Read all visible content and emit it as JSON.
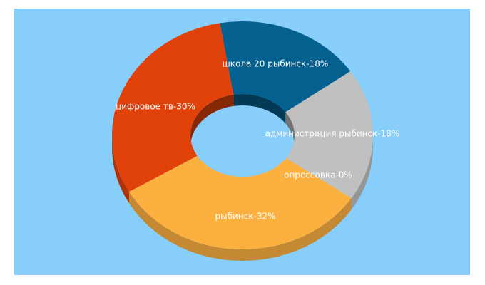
{
  "chart_data": {
    "type": "pie",
    "donut": true,
    "three_d": true,
    "background": "#87cefa",
    "slices": [
      {
        "label": "школа 20 рыбинск-18%",
        "value": 18,
        "color": "#03608f"
      },
      {
        "label": "администрация рыбинск-18%",
        "value": 18,
        "color": "#c0c0c0"
      },
      {
        "label": "опрессовка-0%",
        "value": 0.5,
        "color": "#c0c0c0"
      },
      {
        "label": "рыбинск-32%",
        "value": 32,
        "color": "#fbb040"
      },
      {
        "label": "цифровое тв-30%",
        "value": 30,
        "color": "#e0420a"
      }
    ]
  }
}
